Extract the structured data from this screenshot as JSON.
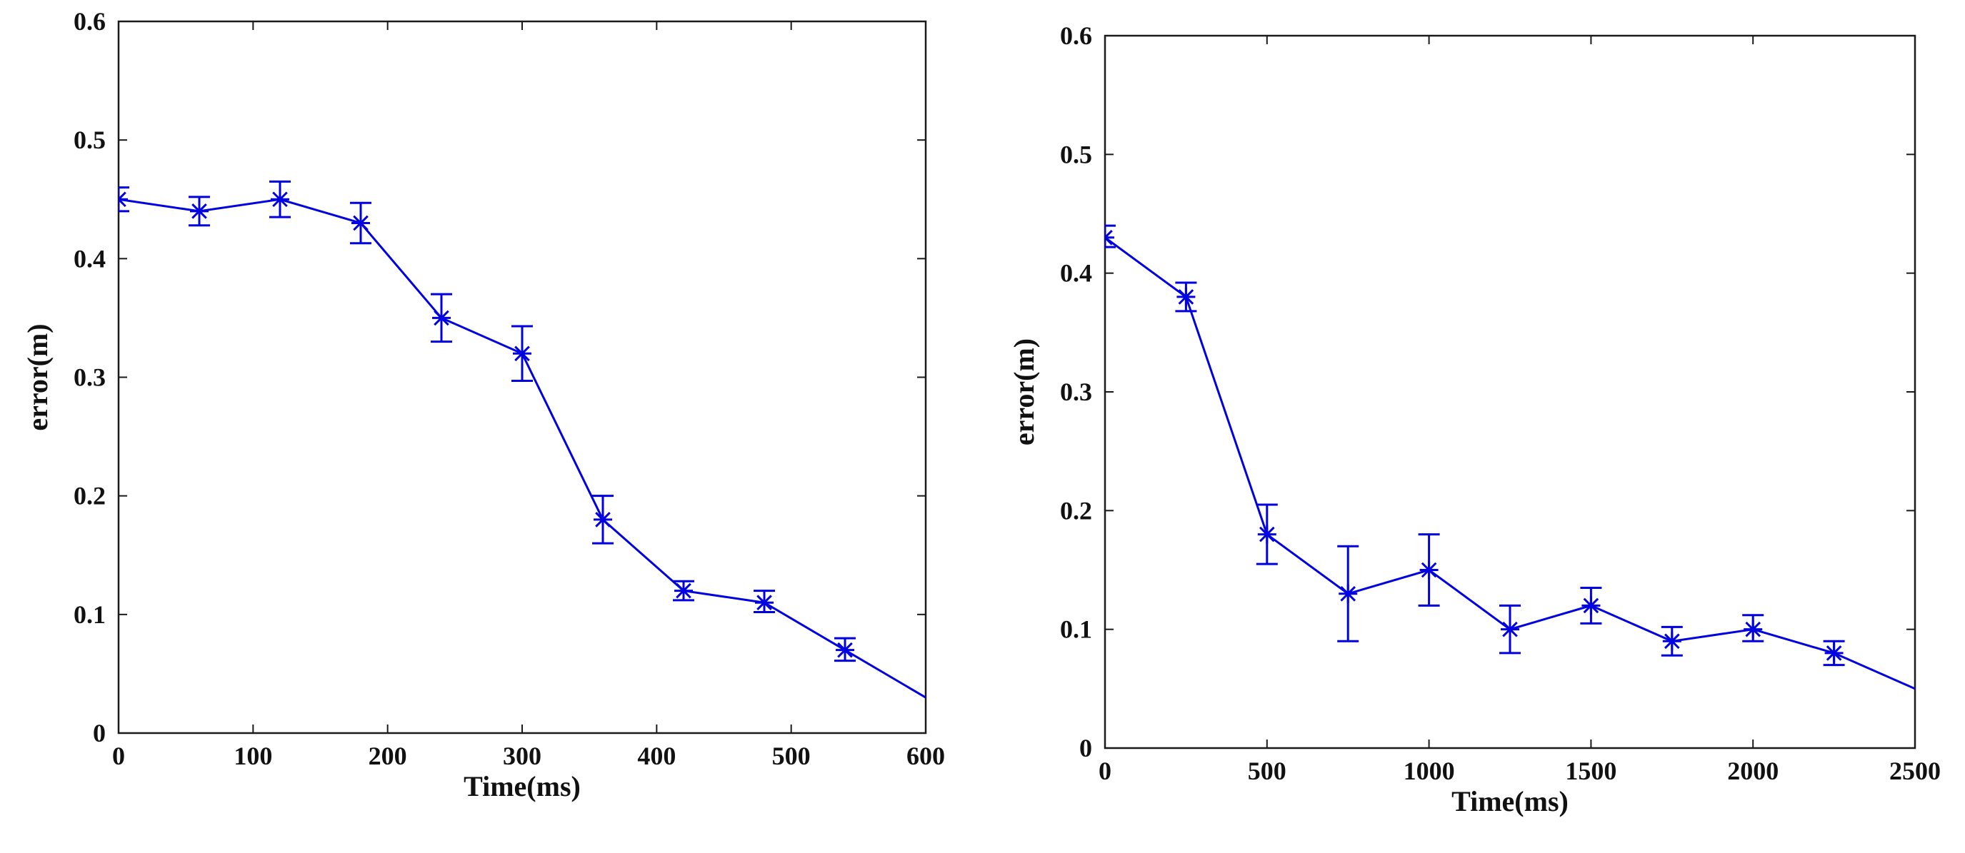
{
  "chart_data": [
    {
      "type": "line",
      "title": "",
      "xlabel": "Time(ms)",
      "ylabel": "error(m)",
      "xlim": [
        0,
        600
      ],
      "ylim": [
        0,
        0.6
      ],
      "xticks": [
        0,
        100,
        200,
        300,
        400,
        500,
        600
      ],
      "xtick_labels": [
        "0",
        "100",
        "200",
        "300",
        "400",
        "500",
        "600"
      ],
      "yticks": [
        0,
        0.1,
        0.2,
        0.3,
        0.4,
        0.5,
        0.6
      ],
      "ytick_labels": [
        "0",
        "0.1",
        "0.2",
        "0.3",
        "0.4",
        "0.5",
        "0.6"
      ],
      "grid": false,
      "series": [
        {
          "name": "error",
          "color": "#0000e0",
          "marker": "asterisk",
          "x": [
            0,
            60,
            120,
            180,
            240,
            300,
            360,
            420,
            480,
            540
          ],
          "y": [
            0.45,
            0.44,
            0.45,
            0.43,
            0.35,
            0.32,
            0.18,
            0.12,
            0.11,
            0.07
          ],
          "err_low": [
            0.44,
            0.428,
            0.435,
            0.413,
            0.33,
            0.297,
            0.16,
            0.112,
            0.102,
            0.061
          ],
          "err_high": [
            0.46,
            0.452,
            0.465,
            0.447,
            0.37,
            0.343,
            0.2,
            0.128,
            0.12,
            0.08
          ],
          "line_end": [
            600,
            0.03
          ]
        }
      ]
    },
    {
      "type": "line",
      "title": "",
      "xlabel": "Time(ms)",
      "ylabel": "error(m)",
      "xlim": [
        0,
        2500
      ],
      "ylim": [
        0,
        0.6
      ],
      "xticks": [
        0,
        500,
        1000,
        1500,
        2000,
        2500
      ],
      "xtick_labels": [
        "0",
        "500",
        "1000",
        "1500",
        "2000",
        "2500"
      ],
      "yticks": [
        0,
        0.1,
        0.2,
        0.3,
        0.4,
        0.5,
        0.6
      ],
      "ytick_labels": [
        "0",
        "0.1",
        "0.2",
        "0.3",
        "0.4",
        "0.5",
        "0.6"
      ],
      "grid": false,
      "series": [
        {
          "name": "error",
          "color": "#0000e0",
          "marker": "asterisk",
          "x": [
            0,
            250,
            500,
            750,
            1000,
            1250,
            1500,
            1750,
            2000,
            2250
          ],
          "y": [
            0.43,
            0.38,
            0.18,
            0.13,
            0.15,
            0.1,
            0.12,
            0.09,
            0.1,
            0.08
          ],
          "err_low": [
            0.422,
            0.368,
            0.155,
            0.09,
            0.12,
            0.08,
            0.105,
            0.078,
            0.09,
            0.07
          ],
          "err_high": [
            0.44,
            0.392,
            0.205,
            0.17,
            0.18,
            0.12,
            0.135,
            0.102,
            0.112,
            0.09
          ],
          "line_end": [
            2500,
            0.05
          ]
        }
      ]
    }
  ]
}
